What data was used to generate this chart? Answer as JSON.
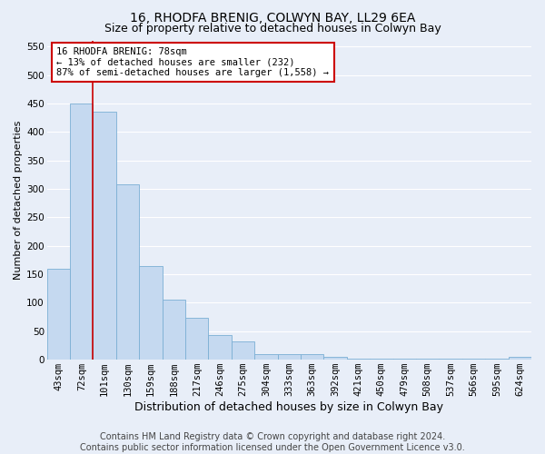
{
  "title": "16, RHODFA BRENIG, COLWYN BAY, LL29 6EA",
  "subtitle": "Size of property relative to detached houses in Colwyn Bay",
  "xlabel": "Distribution of detached houses by size in Colwyn Bay",
  "ylabel": "Number of detached properties",
  "categories": [
    "43sqm",
    "72sqm",
    "101sqm",
    "130sqm",
    "159sqm",
    "188sqm",
    "217sqm",
    "246sqm",
    "275sqm",
    "304sqm",
    "333sqm",
    "363sqm",
    "392sqm",
    "421sqm",
    "450sqm",
    "479sqm",
    "508sqm",
    "537sqm",
    "566sqm",
    "595sqm",
    "624sqm"
  ],
  "values": [
    160,
    450,
    435,
    308,
    165,
    105,
    73,
    44,
    32,
    10,
    10,
    10,
    5,
    2,
    2,
    2,
    2,
    2,
    2,
    2,
    5
  ],
  "bar_color": "#c5d9f0",
  "bar_edge_color": "#7bafd4",
  "vline_x_index": 1,
  "vline_color": "#cc0000",
  "ylim": [
    0,
    560
  ],
  "yticks": [
    0,
    50,
    100,
    150,
    200,
    250,
    300,
    350,
    400,
    450,
    500,
    550
  ],
  "annotation_text": "16 RHODFA BRENIG: 78sqm\n← 13% of detached houses are smaller (232)\n87% of semi-detached houses are larger (1,558) →",
  "annotation_box_facecolor": "#ffffff",
  "annotation_box_edgecolor": "#cc0000",
  "footer_line1": "Contains HM Land Registry data © Crown copyright and database right 2024.",
  "footer_line2": "Contains public sector information licensed under the Open Government Licence v3.0.",
  "background_color": "#e8eef8",
  "grid_color": "#ffffff",
  "title_fontsize": 10,
  "subtitle_fontsize": 9,
  "ylabel_fontsize": 8,
  "xlabel_fontsize": 9,
  "tick_fontsize": 7.5,
  "annotation_fontsize": 7.5,
  "footer_fontsize": 7
}
